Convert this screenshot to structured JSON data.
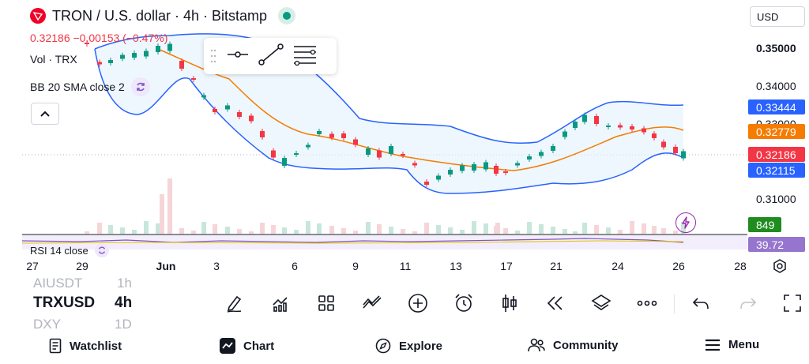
{
  "legend": {
    "title": "TRON / U.S. dollar · 4h · Bitstamp",
    "price_line": "0.32186 −0.00153 (−0.47%)",
    "volume": "Vol · TRX",
    "bollinger": "BB 20 SMA close 2",
    "rsi": "RSI 14 close"
  },
  "currency": {
    "selected": "USD"
  },
  "price_axis": {
    "labels": [
      "0.35000",
      "0.34000",
      "0.33000",
      "0.31000"
    ],
    "tags": {
      "bb_upper": "0.33444",
      "bb_basis": "0.32779",
      "last_price": "0.32186",
      "bb_lower": "0.32115",
      "volume": "849",
      "rsi": "39.72"
    }
  },
  "time_axis": {
    "labels": [
      "27",
      "29",
      "Jun",
      "3",
      "6",
      "9",
      "11",
      "13",
      "17",
      "21",
      "24",
      "26",
      "28"
    ]
  },
  "colors": {
    "up": "#089981",
    "down": "#f23645",
    "bb_band": "#2962ff",
    "bb_basis": "#f57c00",
    "rsi": "#7e57c2",
    "volume_tag": "#1e8c1e",
    "rsi_tag": "#9575cd",
    "upper_tag": "#2962ff",
    "basis_tag": "#f57c00"
  },
  "symbols": {
    "previous": "AIUSDT",
    "previous_interval": "1h",
    "current": "TRXUSD",
    "current_interval": "4h",
    "next": "DXY",
    "next_interval": "1D"
  },
  "toolbar_icons": [
    "pencil-icon",
    "indicators-icon",
    "layouts-icon",
    "compare-icon",
    "add-icon",
    "alert-clock-icon",
    "candles-icon",
    "replay-icon",
    "layers-icon",
    "more-icon",
    "undo-icon",
    "redo-icon",
    "fullscreen-icon"
  ],
  "nav": {
    "watchlist": "Watchlist",
    "chart": "Chart",
    "explore": "Explore",
    "community": "Community",
    "menu": "Menu"
  }
}
